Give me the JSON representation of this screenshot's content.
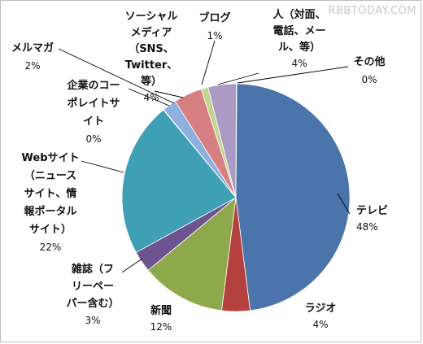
{
  "watermark": "RBBTODAY.COM",
  "chart_data": {
    "type": "pie",
    "title": "",
    "slices": [
      {
        "name": "テレビ",
        "value": 48,
        "label_lines": [
          "テレビ"
        ],
        "pct_text": "48%",
        "color": "#4a74aa"
      },
      {
        "name": "ラジオ",
        "value": 4,
        "label_lines": [
          "ラジオ"
        ],
        "pct_text": "4%",
        "color": "#b5413e"
      },
      {
        "name": "新聞",
        "value": 12,
        "label_lines": [
          "新聞"
        ],
        "pct_text": "12%",
        "color": "#8ea94c"
      },
      {
        "name": "雑誌（フリーペーパー含む）",
        "value": 3,
        "label_lines": [
          "雑誌（フ",
          "リーペー",
          "パー含む）"
        ],
        "pct_text": "3%",
        "color": "#6d5390"
      },
      {
        "name": "Webサイト（ニュースサイト、情報ポータルサイト）",
        "value": 22,
        "label_lines": [
          "Webサイト",
          "（ニュース",
          "サイト、情",
          "報ポータル",
          "サイト）"
        ],
        "pct_text": "22%",
        "color": "#3e9fb5"
      },
      {
        "name": "企業のコーポレイトサイト",
        "value": 0,
        "label_lines": [
          "企業のコー",
          "ポレイトサ",
          "イト"
        ],
        "pct_text": "0%",
        "color": "#e4883a"
      },
      {
        "name": "メルマガ",
        "value": 2,
        "label_lines": [
          "メルマガ"
        ],
        "pct_text": "2%",
        "color": "#8eb0df"
      },
      {
        "name": "ソーシャルメディア（SNS、Twitter、等）",
        "value": 4,
        "label_lines": [
          "ソーシャル",
          "メディア",
          "（SNS、",
          "Twitter、",
          "等）"
        ],
        "pct_text": "4%",
        "color": "#d77e80"
      },
      {
        "name": "ブログ",
        "value": 1,
        "label_lines": [
          "ブログ"
        ],
        "pct_text": "1%",
        "color": "#c2d590"
      },
      {
        "name": "人（対面、電話、メール、等）",
        "value": 4,
        "label_lines": [
          "人（対面、",
          "電話、メー",
          "ル、等）"
        ],
        "pct_text": "4%",
        "color": "#ab9bc4"
      },
      {
        "name": "その他",
        "value": 0,
        "label_lines": [
          "その他"
        ],
        "pct_text": "0%",
        "color": "#7fcbdb"
      }
    ]
  }
}
